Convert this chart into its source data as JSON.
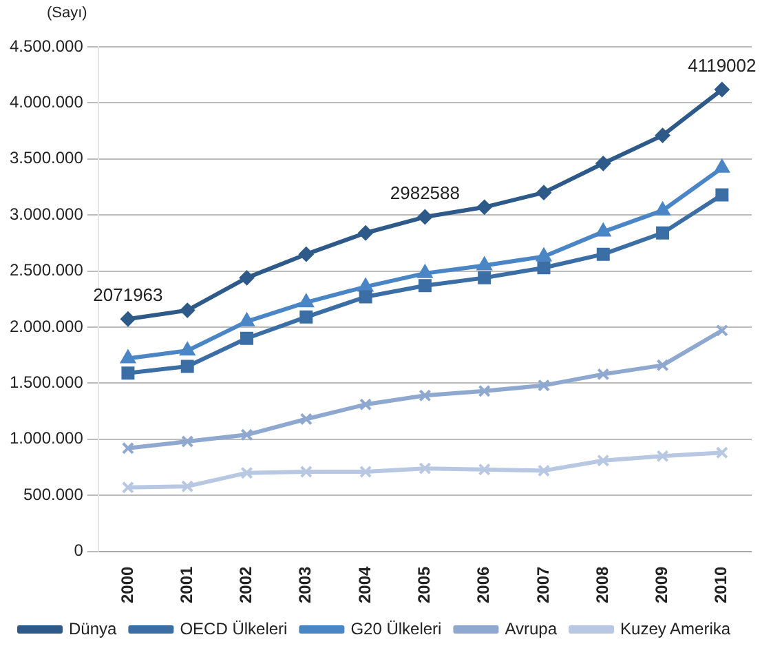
{
  "chart_data": {
    "type": "line",
    "ylabel": "(Sayı)",
    "categories": [
      "2000",
      "2001",
      "2002",
      "2003",
      "2004",
      "2005",
      "2006",
      "2007",
      "2008",
      "2009",
      "2010"
    ],
    "series": [
      {
        "name": "Dünya",
        "color": "#2e5a8a",
        "marker": "diamond",
        "values": [
          2071963,
          2150000,
          2440000,
          2650000,
          2840000,
          2982588,
          3070000,
          3200000,
          3460000,
          3710000,
          4119002
        ]
      },
      {
        "name": "OECD Ülkeleri",
        "color": "#3a6ea5",
        "marker": "square",
        "values": [
          1590000,
          1650000,
          1900000,
          2090000,
          2270000,
          2370000,
          2440000,
          2530000,
          2650000,
          2840000,
          3180000
        ]
      },
      {
        "name": "G20 Ülkeleri",
        "color": "#4a86c5",
        "marker": "triangle",
        "values": [
          1720000,
          1790000,
          2050000,
          2220000,
          2360000,
          2480000,
          2550000,
          2630000,
          2850000,
          3040000,
          3420000
        ]
      },
      {
        "name": "Avrupa",
        "color": "#8fa8d0",
        "marker": "cross",
        "values": [
          920000,
          980000,
          1040000,
          1180000,
          1310000,
          1390000,
          1430000,
          1480000,
          1580000,
          1660000,
          1970000
        ]
      },
      {
        "name": "Kuzey Amerika",
        "color": "#b8c8e3",
        "marker": "cross",
        "values": [
          570000,
          580000,
          700000,
          710000,
          710000,
          740000,
          730000,
          720000,
          810000,
          850000,
          880000
        ]
      }
    ],
    "ylim": [
      0,
      4500000
    ],
    "yticks": [
      0,
      {
        "value": 500000,
        "label": "500.000"
      },
      {
        "value": 1000000,
        "label": "1.000.000"
      },
      {
        "value": 1500000,
        "label": "1.500.000"
      },
      {
        "value": 2000000,
        "label": "2.000.000"
      },
      {
        "value": 2500000,
        "label": "2.500.000"
      },
      {
        "value": 3000000,
        "label": "3.000.000"
      },
      {
        "value": 3500000,
        "label": "3.500.000"
      },
      {
        "value": 4000000,
        "label": "4.000.000"
      },
      {
        "value": 4500000,
        "label": "4.500.000"
      }
    ],
    "annotations": [
      {
        "text": "2071963",
        "x": "2000",
        "y": 2071963
      },
      {
        "text": "2982588",
        "x": "2005",
        "y": 2982588
      },
      {
        "text": "4119002",
        "x": "2010",
        "y": 4119002
      }
    ],
    "grid": "y",
    "legend": "bottom",
    "line_style": "solid"
  }
}
